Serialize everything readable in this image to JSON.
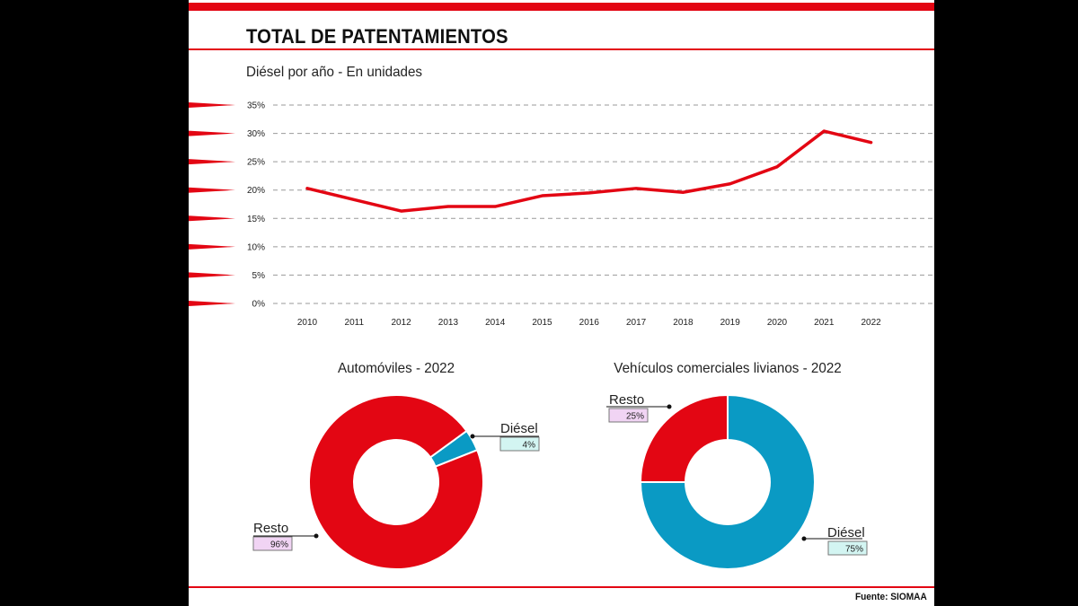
{
  "title": "TOTAL DE PATENTAMIENTOS",
  "subtitle": "Diésel por año  -  En unidades",
  "source": "Fuente: SIOMAA",
  "colors": {
    "brand_red": "#e30613",
    "diesel_blue": "#0a9ac4",
    "resto_badge": "#f1d4f4",
    "diesel_badge": "#d3f5f2"
  },
  "chart_data": [
    {
      "type": "line",
      "title": "Diésel por año  -  En unidades",
      "x": [
        "2010",
        "2011",
        "2012",
        "2013",
        "2014",
        "2015",
        "2016",
        "2017",
        "2018",
        "2019",
        "2020",
        "2021",
        "2022"
      ],
      "series": [
        {
          "name": "Diésel",
          "values": [
            20.3,
            18.3,
            16.3,
            17.1,
            17.1,
            19.0,
            19.5,
            20.3,
            19.6,
            21.1,
            24.1,
            30.4,
            28.4
          ]
        }
      ],
      "yticks": [
        "0%",
        "5%",
        "10%",
        "15%",
        "20%",
        "25%",
        "30%",
        "35%"
      ],
      "ylim": [
        0,
        35
      ],
      "grid": true
    },
    {
      "type": "pie",
      "title": "Automóviles  -  2022",
      "slices": [
        {
          "label": "Diésel",
          "value": 4,
          "display": "4%"
        },
        {
          "label": "Resto",
          "value": 96,
          "display": "96%"
        }
      ]
    },
    {
      "type": "pie",
      "title": "Vehículos comerciales livianos  -  2022",
      "slices": [
        {
          "label": "Diésel",
          "value": 75,
          "display": "75%"
        },
        {
          "label": "Resto",
          "value": 25,
          "display": "25%"
        }
      ]
    }
  ]
}
